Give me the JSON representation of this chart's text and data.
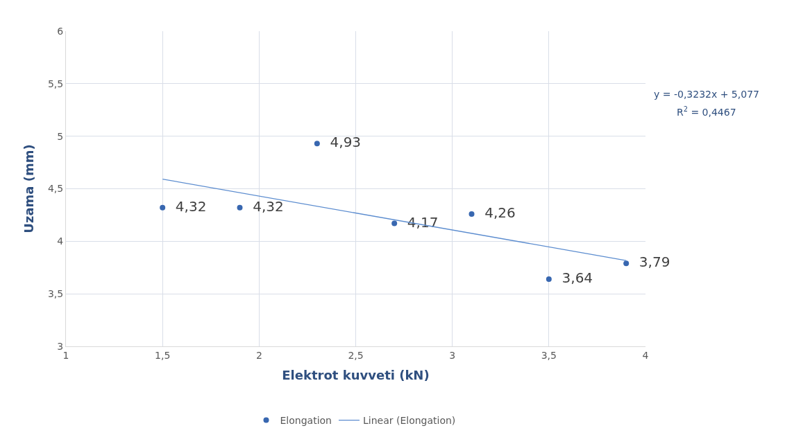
{
  "chart_data": {
    "type": "scatter",
    "xlabel": "Elektrot kuvveti (kN)",
    "ylabel": "Uzama (mm)",
    "series": [
      {
        "name": "Elongation",
        "color": "#3867b0",
        "x": [
          1.5,
          1.9,
          2.3,
          2.7,
          3.1,
          3.5,
          3.9
        ],
        "values": [
          4.32,
          4.32,
          4.93,
          4.17,
          4.26,
          3.64,
          3.79
        ],
        "value_labels": [
          "4,32",
          "4,32",
          "4,93",
          "4,17",
          "4,26",
          "3,64",
          "3,79"
        ],
        "marker": "circle"
      },
      {
        "name": "Linear (Elongation)",
        "type": "line",
        "color": "#5b8ccf",
        "x": [
          1.5,
          3.9
        ],
        "values": [
          4.592,
          3.817
        ],
        "line_style": "solid"
      }
    ],
    "xlim": [
      1,
      4
    ],
    "ylim": [
      3,
      6
    ],
    "xticks": [
      1,
      {
        "value": 1.5,
        "label": "1,5"
      },
      2,
      {
        "value": 2.5,
        "label": "2,5"
      },
      3,
      {
        "value": 3.5,
        "label": "3,5"
      },
      4
    ],
    "yticks": [
      3,
      {
        "value": 3.5,
        "label": "3,5"
      },
      4,
      {
        "value": 4.5,
        "label": "4,5"
      },
      5,
      {
        "value": 5.5,
        "label": "5,5"
      },
      6
    ],
    "annotations": [
      "y = -0,3232x + 5,077",
      "R$^{2}$ = 0,4467"
    ],
    "grid": true,
    "legend": "bottom"
  }
}
